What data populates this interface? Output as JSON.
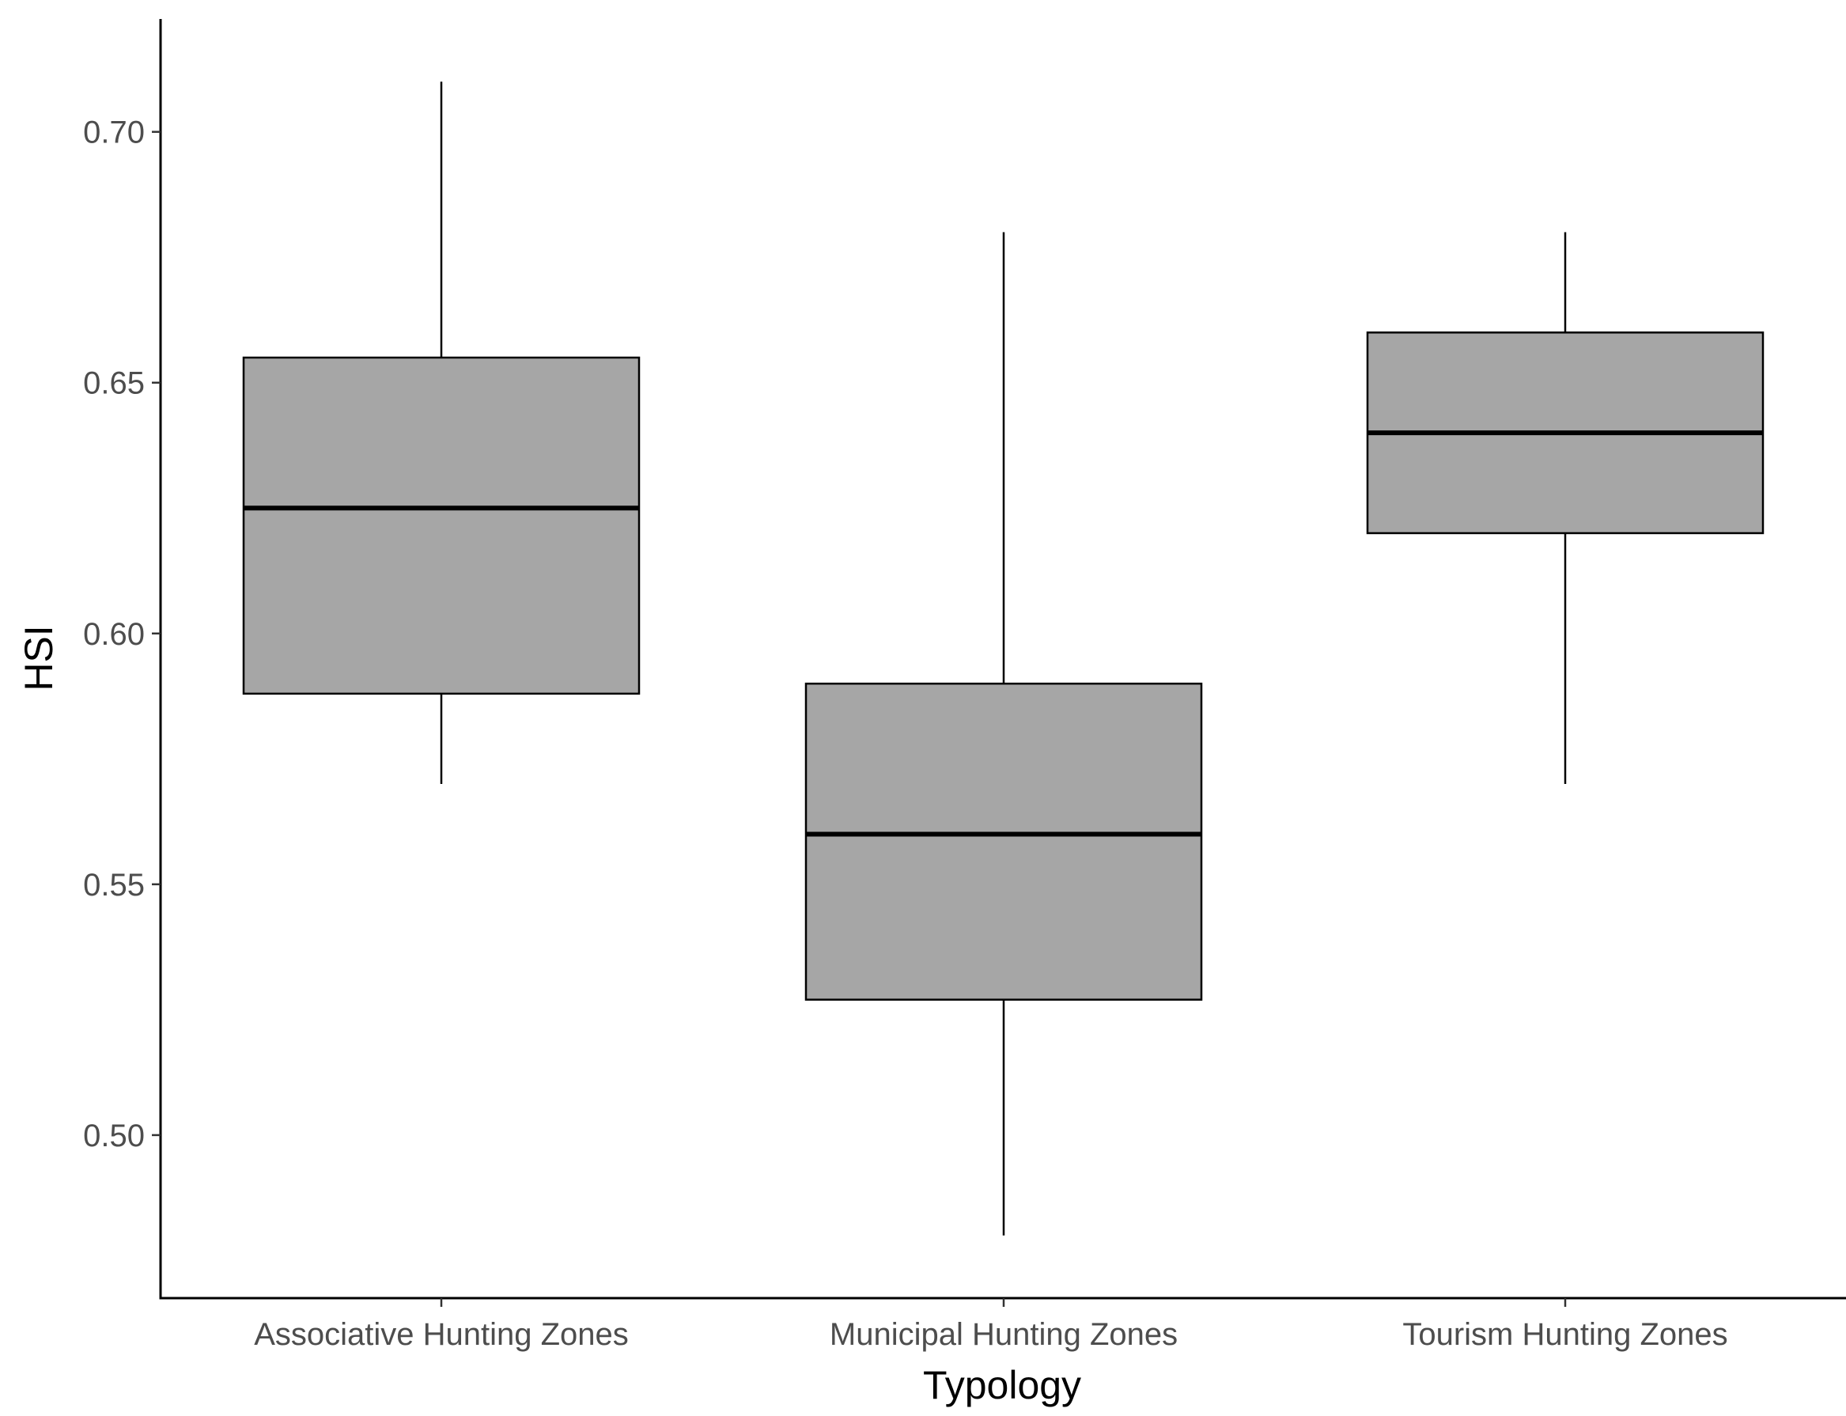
{
  "chart_data": {
    "type": "boxplot",
    "title": "",
    "xlabel": "Typology",
    "ylabel": "HSI",
    "categories": [
      "Associative Hunting Zones",
      "Municipal Hunting Zones",
      "Tourism Hunting Zones"
    ],
    "boxes": [
      {
        "category": "Associative Hunting Zones",
        "min": 0.57,
        "q1": 0.588,
        "median": 0.625,
        "q3": 0.655,
        "max": 0.71
      },
      {
        "category": "Municipal Hunting Zones",
        "min": 0.48,
        "q1": 0.527,
        "median": 0.56,
        "q3": 0.59,
        "max": 0.68
      },
      {
        "category": "Tourism Hunting Zones",
        "min": 0.57,
        "q1": 0.62,
        "median": 0.64,
        "q3": 0.66,
        "max": 0.68
      }
    ],
    "y_ticks": [
      "0.50",
      "0.55",
      "0.60",
      "0.65",
      "0.70"
    ],
    "ylim": [
      0.4675,
      0.7225
    ],
    "grid": false,
    "colors": {
      "box_fill": "#a6a6a6",
      "box_stroke": "#000000",
      "tick_label": "#4d4d4d"
    }
  }
}
